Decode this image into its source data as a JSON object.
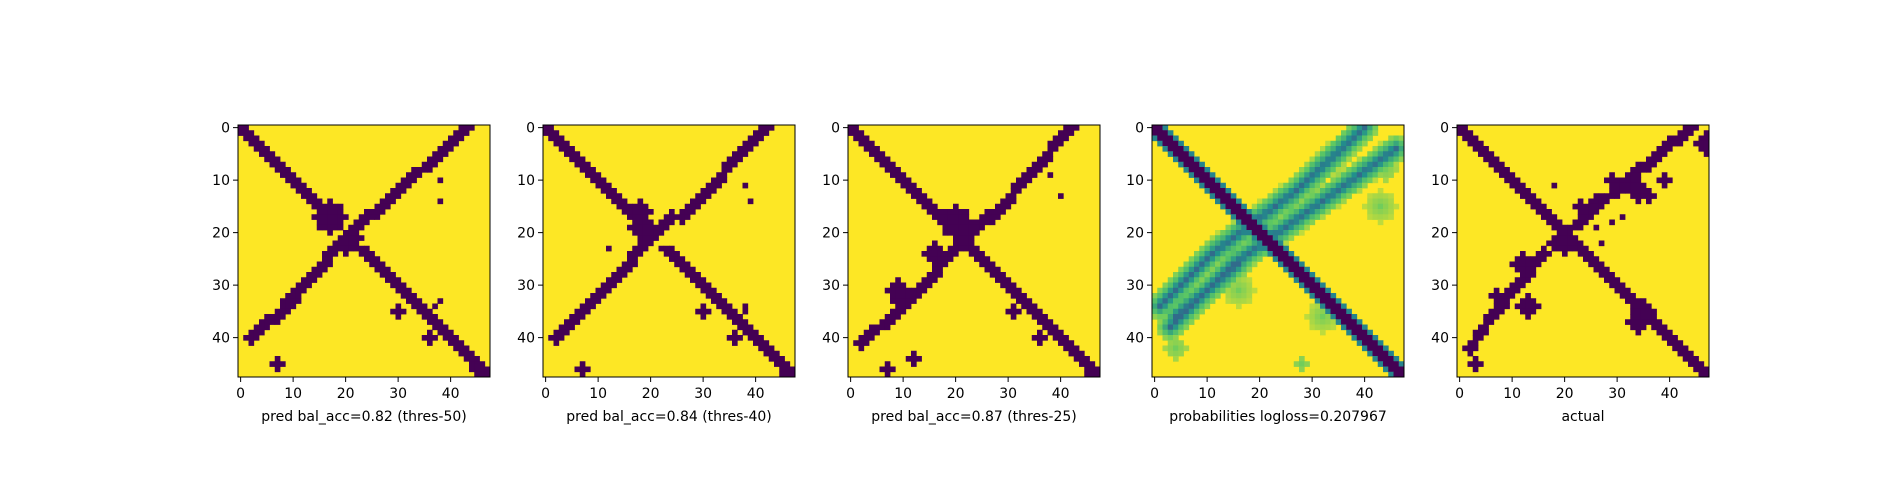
{
  "colors": {
    "low": "#440154",
    "high": "#fde725"
  },
  "chart_data": [
    {
      "type": "heatmap",
      "kind": "binary",
      "xlabel": "pred bal_acc=0.82 (thres-50)",
      "size": 48,
      "xlim": [
        -0.5,
        47.5
      ],
      "ylim": [
        47.5,
        -0.5
      ],
      "xticks": [
        0,
        10,
        20,
        30,
        40
      ],
      "yticks": [
        0,
        10,
        20,
        30,
        40
      ],
      "anti_width": 2,
      "anti_gaps": [
        [
          18,
          22
        ]
      ],
      "cross": [
        [
          0,
          43,
          16,
          26
        ],
        [
          17,
          24,
          33,
          9
        ],
        [
          33,
          10,
          40,
          2
        ]
      ],
      "blobs": [
        [
          17,
          17,
          3
        ],
        [
          21,
          21,
          2
        ],
        [
          22,
          20,
          2
        ],
        [
          35,
          30,
          1
        ],
        [
          45,
          7,
          1
        ],
        [
          40,
          36,
          1
        ],
        [
          38,
          38,
          1
        ],
        [
          47,
          46,
          1
        ],
        [
          46,
          45,
          1
        ]
      ],
      "specks": [
        [
          10,
          38,
          1
        ],
        [
          14,
          38,
          1
        ],
        [
          33,
          38,
          1
        ],
        [
          34,
          37,
          1
        ]
      ],
      "values": "n/a"
    },
    {
      "type": "heatmap",
      "kind": "binary",
      "xlabel": "pred bal_acc=0.84 (thres-40)",
      "size": 48,
      "xlim": [
        -0.5,
        47.5
      ],
      "ylim": [
        47.5,
        -0.5
      ],
      "xticks": [
        0,
        10,
        20,
        30,
        40
      ],
      "yticks": [
        0,
        10,
        20,
        30,
        40
      ],
      "anti_width": 2,
      "anti_gaps": [
        [
          20,
          22
        ]
      ],
      "cross": [
        [
          0,
          42,
          17,
          26
        ],
        [
          17,
          24,
          33,
          9
        ],
        [
          33,
          9,
          40,
          2
        ]
      ],
      "blobs": [
        [
          16,
          18,
          2
        ],
        [
          19,
          18,
          2
        ],
        [
          20,
          20,
          2
        ],
        [
          35,
          30,
          1
        ],
        [
          46,
          7,
          1
        ],
        [
          40,
          36,
          1
        ],
        [
          47,
          46,
          1
        ]
      ],
      "specks": [
        [
          11,
          38,
          1
        ],
        [
          14,
          39,
          1
        ],
        [
          34,
          38,
          1
        ],
        [
          35,
          38,
          1
        ],
        [
          23,
          12,
          1
        ]
      ],
      "values": "n/a"
    },
    {
      "type": "heatmap",
      "kind": "binary",
      "xlabel": "pred bal_acc=0.87 (thres-25)",
      "size": 48,
      "xlim": [
        -0.5,
        47.5
      ],
      "ylim": [
        47.5,
        -0.5
      ],
      "xticks": [
        0,
        10,
        20,
        30,
        40
      ],
      "yticks": [
        0,
        10,
        20,
        30,
        40
      ],
      "anti_width": 2,
      "anti_gaps": [],
      "cross": [
        [
          0,
          42,
          17,
          27
        ],
        [
          17,
          26,
          35,
          9
        ],
        [
          35,
          9,
          41,
          2
        ]
      ],
      "blobs": [
        [
          18,
          20,
          3
        ],
        [
          24,
          16,
          2
        ],
        [
          31,
          9,
          2
        ],
        [
          33,
          10,
          2
        ],
        [
          35,
          31,
          1
        ],
        [
          46,
          7,
          1
        ],
        [
          44,
          12,
          1
        ],
        [
          40,
          36,
          1
        ],
        [
          47,
          46,
          1
        ]
      ],
      "specks": [
        [
          9,
          38,
          1
        ],
        [
          13,
          40,
          1
        ]
      ],
      "values": "n/a"
    },
    {
      "type": "heatmap",
      "kind": "probability",
      "xlabel": "probabilities logloss=0.207967",
      "size": 48,
      "xlim": [
        -0.5,
        47.5
      ],
      "ylim": [
        47.5,
        -0.5
      ],
      "xticks": [
        0,
        10,
        20,
        30,
        40
      ],
      "yticks": [
        0,
        10,
        20,
        30,
        40
      ],
      "anti_width": 1.4,
      "anti_gaps": [],
      "cross": [
        [
          0,
          40,
          12,
          27
        ],
        [
          12,
          27,
          24,
          11
        ],
        [
          24,
          11,
          34,
          1
        ],
        [
          4,
          46,
          14,
          32
        ],
        [
          14,
          32,
          26,
          15
        ],
        [
          26,
          15,
          38,
          3
        ],
        [
          26,
          16,
          36,
          4
        ]
      ],
      "blobs": [
        [
          31,
          16,
          3
        ],
        [
          36,
          32,
          3
        ],
        [
          42,
          4,
          2
        ],
        [
          15,
          43,
          3
        ],
        [
          8,
          44,
          2
        ],
        [
          45,
          28,
          1
        ]
      ],
      "specks": [],
      "values": "n/a"
    },
    {
      "type": "heatmap",
      "kind": "binary",
      "xlabel": "actual",
      "size": 48,
      "xlim": [
        -0.5,
        47.5
      ],
      "ylim": [
        47.5,
        -0.5
      ],
      "xticks": [
        0,
        10,
        20,
        30,
        40
      ],
      "yticks": [
        0,
        10,
        20,
        30,
        40
      ],
      "anti_width": 2,
      "anti_gaps": [],
      "cross": [
        [
          0,
          44,
          10,
          32
        ],
        [
          10,
          32,
          22,
          18
        ],
        [
          24,
          16,
          36,
          6
        ],
        [
          36,
          6,
          42,
          2
        ]
      ],
      "blobs": [
        [
          35,
          35,
          2
        ],
        [
          37,
          34,
          2
        ],
        [
          12,
          34,
          2
        ],
        [
          13,
          36,
          1
        ],
        [
          10,
          39,
          1
        ],
        [
          34,
          13,
          2
        ],
        [
          14,
          26,
          1
        ],
        [
          10,
          29,
          1
        ],
        [
          45,
          3,
          1
        ],
        [
          3,
          47,
          2
        ],
        [
          15,
          23,
          1
        ],
        [
          26,
          12,
          2
        ],
        [
          23,
          20,
          1
        ],
        [
          32,
          7,
          1
        ]
      ],
      "specks": [
        [
          42,
          3,
          1
        ],
        [
          40,
          4,
          1
        ],
        [
          11,
          18,
          1
        ],
        [
          17,
          31,
          1
        ],
        [
          18,
          29,
          1
        ],
        [
          22,
          27,
          1
        ],
        [
          19,
          26,
          1
        ],
        [
          31,
          9,
          1
        ],
        [
          32,
          8,
          1
        ]
      ],
      "values": "n/a"
    }
  ]
}
